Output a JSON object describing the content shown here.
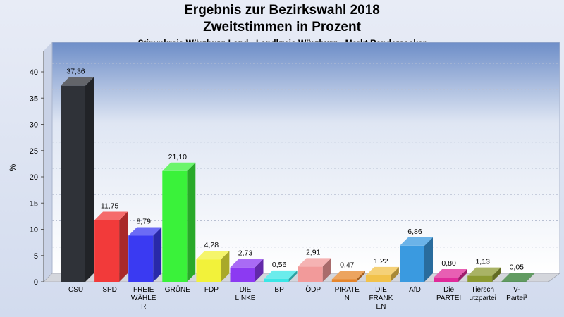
{
  "chart_data": {
    "type": "bar",
    "title": "Ergebnis zur Bezirkswahl 2018",
    "title2": "Zweitstimmen in Prozent",
    "subtitle": "Stimmkreis Würzburg-Land - Landkreis Würzburg - Markt Randersacker",
    "ylabel": "%",
    "ylim": [
      0,
      40
    ],
    "yticks": [
      0,
      5,
      10,
      15,
      20,
      25,
      30,
      35,
      40
    ],
    "grid": true,
    "categories": [
      [
        "CSU"
      ],
      [
        "SPD"
      ],
      [
        "FREIE",
        "WÄHLE",
        "R"
      ],
      [
        "GRÜNE"
      ],
      [
        "FDP"
      ],
      [
        "DIE",
        "LINKE"
      ],
      [
        "BP"
      ],
      [
        "ÖDP"
      ],
      [
        "PIRATE",
        "N"
      ],
      [
        "DIE",
        "FRANK",
        "EN"
      ],
      [
        "AfD"
      ],
      [
        "Die",
        "PARTEI"
      ],
      [
        "Tiersch",
        "utzpartei"
      ],
      [
        "V-",
        "Partei³"
      ]
    ],
    "values": [
      37.36,
      11.75,
      8.79,
      21.1,
      4.28,
      2.73,
      0.56,
      2.91,
      0.47,
      1.22,
      6.86,
      0.8,
      1.13,
      0.05
    ],
    "value_labels": [
      "37,36",
      "11,75",
      "8,79",
      "21,10",
      "4,28",
      "2,73",
      "0,56",
      "2,91",
      "0,47",
      "1,22",
      "6,86",
      "0,80",
      "1,13",
      "0,05"
    ],
    "colors": [
      "#2f3238",
      "#f23a3a",
      "#3a3af2",
      "#3af23a",
      "#f2f23a",
      "#8c3af2",
      "#3ae6e6",
      "#f29a9a",
      "#e6852a",
      "#f2c24a",
      "#3a9ae0",
      "#e02a9a",
      "#8c9a32",
      "#2e7a2e"
    ]
  }
}
